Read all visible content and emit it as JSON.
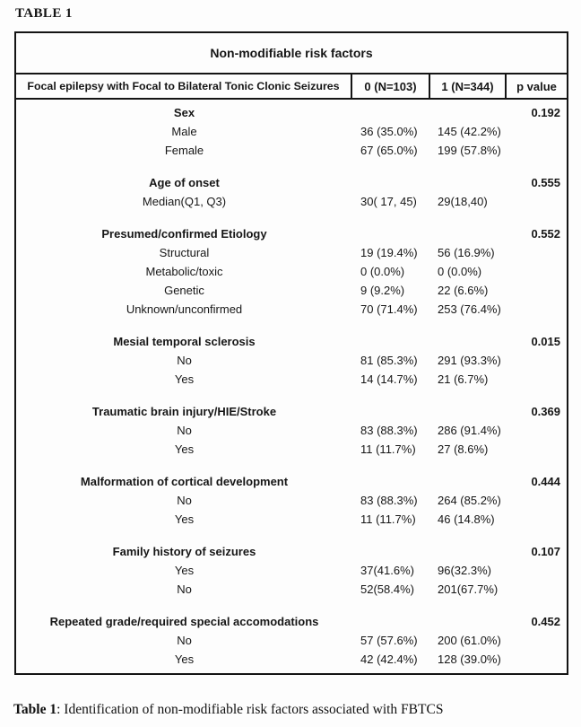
{
  "page": {
    "heading": "TABLE 1",
    "caption_bold": "Table 1",
    "caption_rest": ": Identification of non-modifiable risk factors associated with FBTCS"
  },
  "table": {
    "title": "Non-modifiable risk factors",
    "columns": [
      "Focal epilepsy with Focal to Bilateral Tonic Clonic Seizures",
      "0 (N=103)",
      "1 (N=344)",
      "p value"
    ],
    "groups": [
      {
        "factor": "Sex",
        "p": "0.192",
        "rows": [
          {
            "label": "Male",
            "v0": "36 (35.0%)",
            "v1": "145 (42.2%)"
          },
          {
            "label": "Female",
            "v0": "67 (65.0%)",
            "v1": "199 (57.8%)"
          }
        ]
      },
      {
        "factor": "Age of onset",
        "p": "0.555",
        "rows": [
          {
            "label": "Median(Q1, Q3)",
            "v0": "30( 17, 45)",
            "v1": "29(18,40)"
          }
        ]
      },
      {
        "factor": "Presumed/confirmed Etiology",
        "p": "0.552",
        "rows": [
          {
            "label": "Structural",
            "v0": "19 (19.4%)",
            "v1": "56 (16.9%)"
          },
          {
            "label": "Metabolic/toxic",
            "v0": "0 (0.0%)",
            "v1": "0 (0.0%)"
          },
          {
            "label": "Genetic",
            "v0": "9 (9.2%)",
            "v1": "22 (6.6%)"
          },
          {
            "label": "Unknown/unconfirmed",
            "v0": "70 (71.4%)",
            "v1": "253 (76.4%)"
          }
        ]
      },
      {
        "factor": "Mesial temporal sclerosis",
        "p": "0.015",
        "rows": [
          {
            "label": "No",
            "v0": "81 (85.3%)",
            "v1": "291 (93.3%)"
          },
          {
            "label": "Yes",
            "v0": "14 (14.7%)",
            "v1": "21 (6.7%)"
          }
        ]
      },
      {
        "factor": "Traumatic brain injury/HIE/Stroke",
        "p": "0.369",
        "rows": [
          {
            "label": "No",
            "v0": "83 (88.3%)",
            "v1": "286 (91.4%)"
          },
          {
            "label": "Yes",
            "v0": "11 (11.7%)",
            "v1": "27 (8.6%)"
          }
        ]
      },
      {
        "factor": "Malformation of cortical development",
        "p": "0.444",
        "rows": [
          {
            "label": "No",
            "v0": "83 (88.3%)",
            "v1": "264 (85.2%)"
          },
          {
            "label": "Yes",
            "v0": "11 (11.7%)",
            "v1": "46 (14.8%)"
          }
        ]
      },
      {
        "factor": "Family history of seizures",
        "p": "0.107",
        "rows": [
          {
            "label": "Yes",
            "v0": "37(41.6%)",
            "v1": "96(32.3%)"
          },
          {
            "label": "No",
            "v0": "52(58.4%)",
            "v1": "201(67.7%)"
          }
        ]
      },
      {
        "factor": "Repeated grade/required special accomodations",
        "p": "0.452",
        "rows": [
          {
            "label": "No",
            "v0": "57 (57.6%)",
            "v1": "200 (61.0%)"
          },
          {
            "label": "Yes",
            "v0": "42 (42.4%)",
            "v1": "128 (39.0%)"
          }
        ]
      }
    ]
  }
}
